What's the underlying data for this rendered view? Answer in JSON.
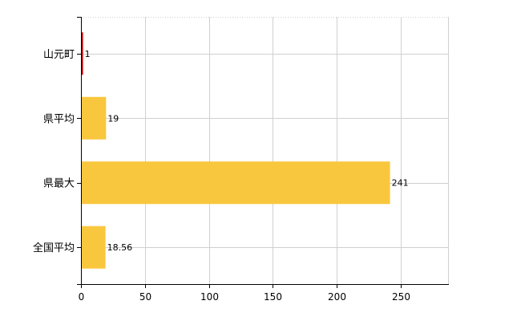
{
  "chart_data": {
    "type": "bar",
    "orientation": "horizontal",
    "categories": [
      "山元町",
      "県平均",
      "県最大",
      "全国平均"
    ],
    "values": [
      1,
      19,
      241,
      18.56
    ],
    "data_labels": [
      "1",
      "19",
      "241",
      "18.56"
    ],
    "bar_colors": [
      "#cc0000",
      "#f9c73e",
      "#f9c73e",
      "#f9c73e"
    ],
    "xlim": [
      0,
      287
    ],
    "xticks": [
      0,
      50,
      100,
      150,
      200,
      250
    ],
    "grid": true,
    "legend": "none",
    "title": "",
    "xlabel": "",
    "ylabel": ""
  }
}
